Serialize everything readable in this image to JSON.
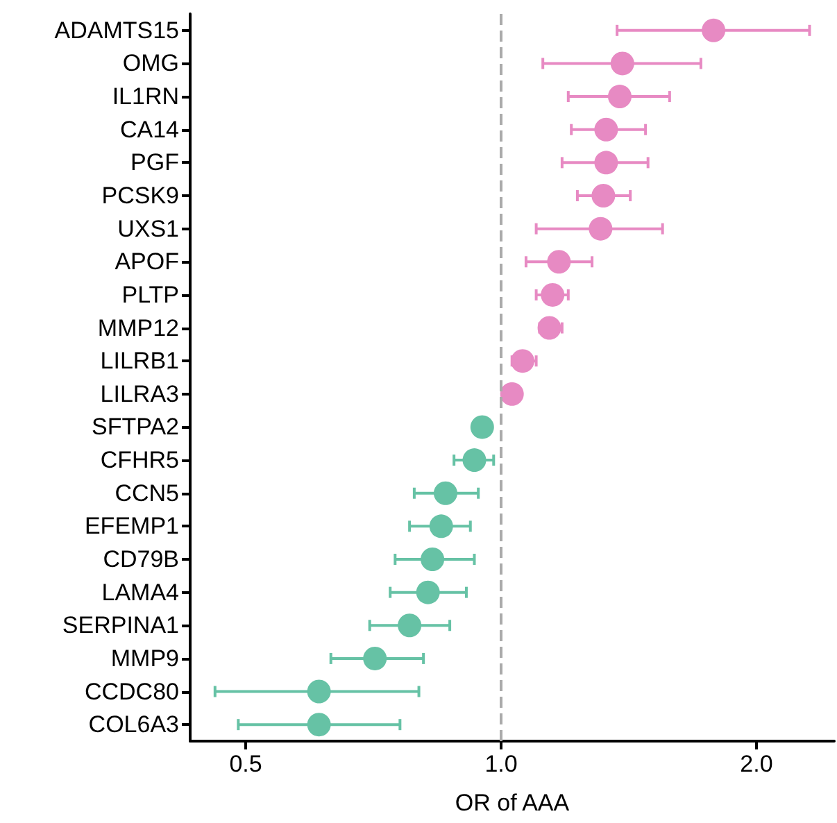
{
  "chart_data": {
    "type": "scatter",
    "orientation": "horizontal",
    "xlabel": "OR of AAA",
    "log": "x",
    "marker": "circle",
    "grid": false,
    "categories": [
      "ADAMTS15",
      "OMG",
      "IL1RN",
      "CA14",
      "PGF",
      "PCSK9",
      "UXS1",
      "APOF",
      "PLTP",
      "MMP12",
      "LILRB1",
      "LILRA3",
      "SFTPA2",
      "CFHR5",
      "CCN5",
      "EFEMP1",
      "CD79B",
      "LAMA4",
      "SERPINA1",
      "MMP9",
      "CCDC80",
      "COL6A3"
    ],
    "xlim": [
      0.43,
      2.47
    ],
    "xticks": [
      0.5,
      {
        "value": 1,
        "label": "1.0"
      },
      {
        "value": 2,
        "label": "2.0"
      }
    ],
    "ref_lines": [
      {
        "axis": "x",
        "value": 1,
        "color": "#aaaaaa",
        "line_style": "dashed"
      }
    ],
    "series": [
      {
        "color": "#e78ac3",
        "values": [
          1.78,
          1.39,
          1.38,
          1.33,
          1.33,
          1.32,
          1.31,
          1.17,
          1.15,
          1.14,
          1.06,
          1.03,
          null,
          null,
          null,
          null,
          null,
          null,
          null,
          null,
          null,
          null
        ],
        "errors": [
          [
            1.37,
            2.31
          ],
          [
            1.12,
            1.72
          ],
          [
            1.2,
            1.58
          ],
          [
            1.21,
            1.48
          ],
          [
            1.18,
            1.49
          ],
          [
            1.23,
            1.42
          ],
          [
            1.1,
            1.55
          ],
          [
            1.07,
            1.28
          ],
          [
            1.1,
            1.2
          ],
          [
            1.11,
            1.18
          ],
          [
            1.03,
            1.1
          ],
          null,
          null,
          null,
          null,
          null,
          null,
          null,
          null,
          null,
          null,
          null
        ]
      },
      {
        "color": "#66c2a5",
        "values": [
          null,
          null,
          null,
          null,
          null,
          null,
          null,
          null,
          null,
          null,
          null,
          null,
          0.95,
          0.93,
          0.86,
          0.85,
          0.83,
          0.82,
          0.78,
          0.71,
          0.61,
          0.61
        ],
        "errors": [
          null,
          null,
          null,
          null,
          null,
          null,
          null,
          null,
          null,
          null,
          null,
          null,
          null,
          [
            0.88,
            0.98
          ],
          [
            0.79,
            0.94
          ],
          [
            0.78,
            0.92
          ],
          [
            0.75,
            0.93
          ],
          [
            0.74,
            0.91
          ],
          [
            0.7,
            0.87
          ],
          [
            0.63,
            0.81
          ],
          [
            0.46,
            0.8
          ],
          [
            0.49,
            0.76
          ]
        ]
      }
    ]
  }
}
